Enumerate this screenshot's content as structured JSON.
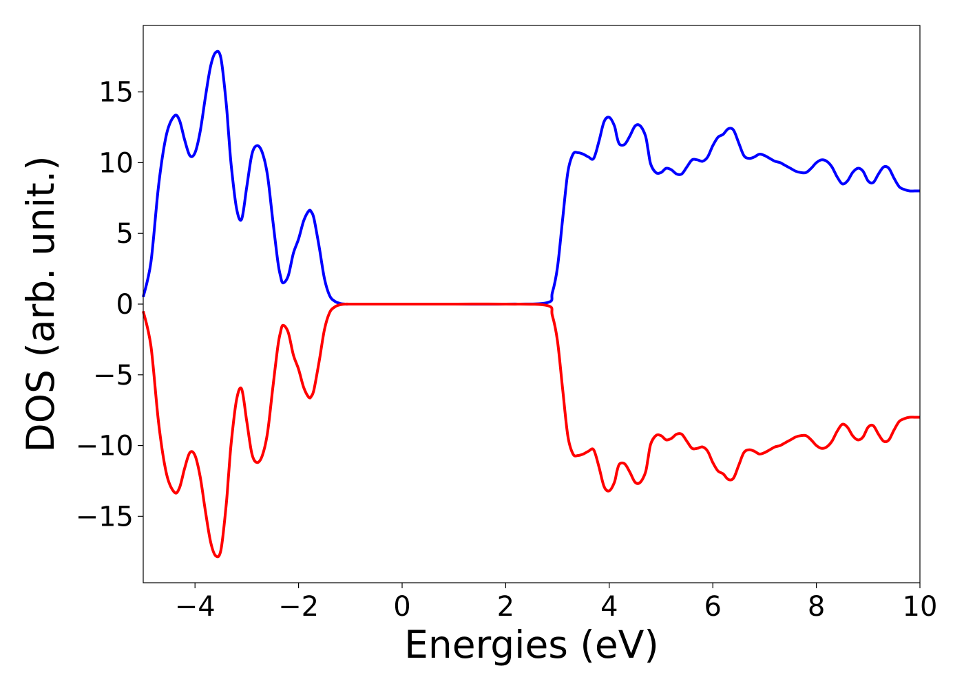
{
  "chart_data": {
    "type": "line",
    "title": "",
    "xlabel": "Energies (eV)",
    "ylabel": "DOS (arb. unit.)",
    "xlim": [
      -5,
      10
    ],
    "ylim": [
      -19.7,
      19.7
    ],
    "xticks": [
      -4,
      -2,
      0,
      2,
      4,
      6,
      8,
      10
    ],
    "xtick_labels": [
      "−4",
      "−2",
      "0",
      "2",
      "4",
      "6",
      "8",
      "10"
    ],
    "yticks": [
      15,
      10,
      5,
      0,
      -5,
      -10,
      -15
    ],
    "ytick_labels": [
      "15",
      "10",
      "5",
      "0",
      "−5",
      "−10",
      "−15"
    ],
    "grid": false,
    "legend": "none",
    "series": [
      {
        "color": "#0000ff",
        "x": [
          -5.0,
          -4.85,
          -4.7,
          -4.55,
          -4.4,
          -4.3,
          -4.2,
          -4.1,
          -4.0,
          -3.9,
          -3.8,
          -3.7,
          -3.6,
          -3.5,
          -3.4,
          -3.35,
          -3.3,
          -3.2,
          -3.1,
          -3.0,
          -2.9,
          -2.8,
          -2.7,
          -2.6,
          -2.5,
          -2.4,
          -2.35,
          -2.3,
          -2.2,
          -2.1,
          -2.0,
          -1.9,
          -1.8,
          -1.75,
          -1.7,
          -1.6,
          -1.5,
          -1.4,
          -1.3,
          -1.2,
          -1.1,
          -1.0,
          -0.9,
          -0.8,
          -0.7,
          -0.6,
          -0.5,
          0.0,
          1.0,
          2.0,
          2.8,
          2.9,
          3.0,
          3.1,
          3.2,
          3.3,
          3.4,
          3.5,
          3.6,
          3.7,
          3.8,
          3.9,
          4.0,
          4.1,
          4.15,
          4.2,
          4.3,
          4.4,
          4.5,
          4.6,
          4.7,
          4.75,
          4.8,
          4.9,
          5.0,
          5.1,
          5.2,
          5.3,
          5.4,
          5.5,
          5.6,
          5.7,
          5.8,
          5.9,
          6.0,
          6.1,
          6.2,
          6.3,
          6.4,
          6.5,
          6.6,
          6.7,
          6.8,
          6.9,
          7.0,
          7.1,
          7.2,
          7.3,
          7.4,
          7.5,
          7.6,
          7.7,
          7.8,
          7.9,
          8.0,
          8.1,
          8.2,
          8.3,
          8.4,
          8.5,
          8.6,
          8.7,
          8.8,
          8.9,
          9.0,
          9.1,
          9.2,
          9.3,
          9.4,
          9.5,
          9.6,
          9.7,
          9.8,
          9.9,
          10.0
        ],
        "y": [
          0.5,
          3.0,
          8.5,
          12.0,
          13.3,
          13.0,
          11.6,
          10.5,
          10.7,
          12.2,
          14.6,
          16.8,
          17.8,
          17.4,
          14.3,
          12.0,
          9.8,
          6.8,
          6.0,
          8.3,
          10.6,
          11.2,
          10.7,
          9.1,
          6.0,
          3.0,
          2.0,
          1.5,
          2.0,
          3.6,
          4.6,
          5.9,
          6.6,
          6.5,
          6.0,
          4.0,
          1.8,
          0.6,
          0.2,
          0.05,
          0.0,
          0.0,
          0.0,
          0.0,
          0.0,
          0.0,
          0.0,
          0.0,
          0.0,
          0.0,
          0.1,
          0.8,
          2.6,
          6.0,
          9.3,
          10.6,
          10.7,
          10.6,
          10.4,
          10.3,
          11.5,
          12.9,
          13.2,
          12.6,
          11.8,
          11.3,
          11.3,
          11.9,
          12.6,
          12.6,
          11.9,
          10.9,
          9.9,
          9.3,
          9.3,
          9.6,
          9.5,
          9.2,
          9.2,
          9.7,
          10.2,
          10.2,
          10.1,
          10.4,
          11.2,
          11.8,
          12.0,
          12.4,
          12.3,
          11.4,
          10.5,
          10.3,
          10.4,
          10.6,
          10.5,
          10.3,
          10.1,
          10.0,
          9.8,
          9.6,
          9.4,
          9.3,
          9.3,
          9.6,
          10.0,
          10.2,
          10.1,
          9.7,
          9.0,
          8.5,
          8.7,
          9.3,
          9.6,
          9.4,
          8.7,
          8.6,
          9.2,
          9.7,
          9.6,
          8.9,
          8.3,
          8.1,
          8.0,
          8.0,
          8.0
        ]
      },
      {
        "color": "#ff0000",
        "x": [
          -5.0,
          -4.85,
          -4.7,
          -4.55,
          -4.4,
          -4.3,
          -4.2,
          -4.1,
          -4.0,
          -3.9,
          -3.8,
          -3.7,
          -3.6,
          -3.5,
          -3.4,
          -3.35,
          -3.3,
          -3.2,
          -3.1,
          -3.0,
          -2.9,
          -2.8,
          -2.7,
          -2.6,
          -2.5,
          -2.4,
          -2.35,
          -2.3,
          -2.2,
          -2.1,
          -2.0,
          -1.9,
          -1.8,
          -1.75,
          -1.7,
          -1.6,
          -1.5,
          -1.4,
          -1.3,
          -1.2,
          -1.1,
          -1.0,
          -0.9,
          -0.8,
          -0.7,
          -0.6,
          -0.5,
          0.0,
          1.0,
          2.0,
          2.8,
          2.9,
          3.0,
          3.1,
          3.2,
          3.3,
          3.4,
          3.5,
          3.6,
          3.7,
          3.8,
          3.9,
          4.0,
          4.1,
          4.15,
          4.2,
          4.3,
          4.4,
          4.5,
          4.6,
          4.7,
          4.75,
          4.8,
          4.9,
          5.0,
          5.1,
          5.2,
          5.3,
          5.4,
          5.5,
          5.6,
          5.7,
          5.8,
          5.9,
          6.0,
          6.1,
          6.2,
          6.3,
          6.4,
          6.5,
          6.6,
          6.7,
          6.8,
          6.9,
          7.0,
          7.1,
          7.2,
          7.3,
          7.4,
          7.5,
          7.6,
          7.7,
          7.8,
          7.9,
          8.0,
          8.1,
          8.2,
          8.3,
          8.4,
          8.5,
          8.6,
          8.7,
          8.8,
          8.9,
          9.0,
          9.1,
          9.2,
          9.3,
          9.4,
          9.5,
          9.6,
          9.7,
          9.8,
          9.9,
          10.0
        ],
        "y": [
          -0.5,
          -3.0,
          -8.5,
          -12.0,
          -13.3,
          -13.0,
          -11.6,
          -10.5,
          -10.7,
          -12.2,
          -14.6,
          -16.8,
          -17.8,
          -17.4,
          -14.3,
          -12.0,
          -9.8,
          -6.8,
          -6.0,
          -8.3,
          -10.6,
          -11.2,
          -10.7,
          -9.1,
          -6.0,
          -3.0,
          -2.0,
          -1.5,
          -2.0,
          -3.6,
          -4.6,
          -5.9,
          -6.6,
          -6.5,
          -6.0,
          -4.0,
          -1.8,
          -0.6,
          -0.2,
          -0.05,
          0.0,
          0.0,
          0.0,
          0.0,
          0.0,
          0.0,
          0.0,
          0.0,
          0.0,
          0.0,
          -0.1,
          -0.8,
          -2.6,
          -6.0,
          -9.3,
          -10.6,
          -10.7,
          -10.6,
          -10.4,
          -10.3,
          -11.5,
          -12.9,
          -13.2,
          -12.6,
          -11.8,
          -11.3,
          -11.3,
          -11.9,
          -12.6,
          -12.6,
          -11.9,
          -10.9,
          -9.9,
          -9.3,
          -9.3,
          -9.6,
          -9.5,
          -9.2,
          -9.2,
          -9.7,
          -10.2,
          -10.2,
          -10.1,
          -10.4,
          -11.2,
          -11.8,
          -12.0,
          -12.4,
          -12.3,
          -11.4,
          -10.5,
          -10.3,
          -10.4,
          -10.6,
          -10.5,
          -10.3,
          -10.1,
          -10.0,
          -9.8,
          -9.6,
          -9.4,
          -9.3,
          -9.3,
          -9.6,
          -10.0,
          -10.2,
          -10.1,
          -9.7,
          -9.0,
          -8.5,
          -8.7,
          -9.3,
          -9.6,
          -9.4,
          -8.7,
          -8.6,
          -9.2,
          -9.7,
          -9.6,
          -8.9,
          -8.3,
          -8.1,
          -8.0,
          -8.0,
          -8.0
        ]
      }
    ]
  }
}
